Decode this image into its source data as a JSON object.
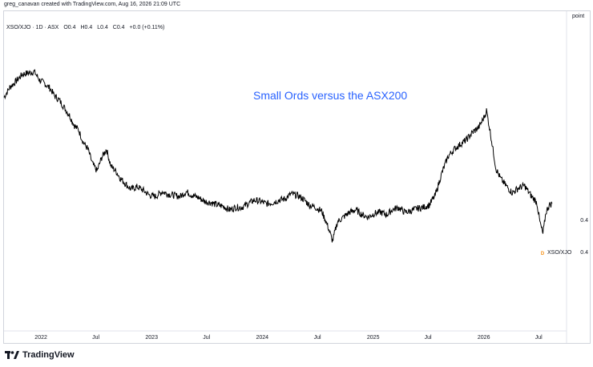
{
  "header": {
    "credit": "greg_canavan created with TradingView.com, Aug 16, 2026 21:09 UTC"
  },
  "legend": {
    "symbol": "XSO/XJO · 1D · ASX",
    "open": "O0.4",
    "high": "H0.4",
    "low": "L0.4",
    "close": "C0.4",
    "change": "+0.0 (+0.11%)"
  },
  "price_axis": {
    "unit": "point",
    "upper_label": "0.4",
    "last_label": "0.4"
  },
  "series_tag": "XSO/XJO",
  "marker": "D",
  "footer": {
    "brand": "TradingView"
  },
  "colors": {
    "line": "#000000",
    "title": "#2962ff",
    "marker": "#f7931a",
    "grid": "#d1d4dc"
  },
  "chart_data": {
    "type": "line",
    "title": "Small Ords versus the ASX200",
    "x_tick_labels": [
      "2022",
      "Jul",
      "2023",
      "Jul",
      "2024",
      "Jul",
      "2025",
      "Jul",
      "2026",
      "Jul"
    ],
    "x_ticks": [
      "2022-01-01",
      "2022-07-01",
      "2023-01-01",
      "2023-07-01",
      "2024-01-01",
      "2024-07-01",
      "2025-01-01",
      "2025-07-01",
      "2026-01-01",
      "2026-07-01"
    ],
    "y_tick_labels": [
      "0.4",
      "0.4"
    ],
    "ylim": [
      0.336,
      0.468
    ],
    "grid": false,
    "series": [
      {
        "name": "XSO/XJO",
        "x": [
          "2021-09-01",
          "2021-09-20",
          "2021-10-10",
          "2021-11-01",
          "2021-11-20",
          "2021-12-10",
          "2021-12-28",
          "2022-01-15",
          "2022-02-01",
          "2022-02-15",
          "2022-03-01",
          "2022-03-20",
          "2022-04-05",
          "2022-04-20",
          "2022-05-05",
          "2022-05-20",
          "2022-06-05",
          "2022-06-20",
          "2022-07-05",
          "2022-07-20",
          "2022-08-05",
          "2022-08-20",
          "2022-09-05",
          "2022-09-20",
          "2022-10-05",
          "2022-10-25",
          "2022-11-15",
          "2022-12-05",
          "2022-12-25",
          "2023-01-15",
          "2023-02-05",
          "2023-02-25",
          "2023-03-15",
          "2023-04-05",
          "2023-04-25",
          "2023-05-15",
          "2023-06-05",
          "2023-06-25",
          "2023-07-15",
          "2023-08-05",
          "2023-08-25",
          "2023-09-15",
          "2023-10-05",
          "2023-10-25",
          "2023-11-15",
          "2023-12-05",
          "2023-12-25",
          "2024-01-15",
          "2024-02-05",
          "2024-02-25",
          "2024-03-15",
          "2024-04-05",
          "2024-04-25",
          "2024-05-15",
          "2024-06-05",
          "2024-06-25",
          "2024-07-15",
          "2024-08-05",
          "2024-08-20",
          "2024-09-05",
          "2024-09-25",
          "2024-10-15",
          "2024-11-05",
          "2024-11-25",
          "2024-12-15",
          "2025-01-05",
          "2025-01-25",
          "2025-02-15",
          "2025-03-05",
          "2025-03-25",
          "2025-04-15",
          "2025-05-05",
          "2025-05-25",
          "2025-06-15",
          "2025-07-05",
          "2025-07-25",
          "2025-08-15",
          "2025-09-05",
          "2025-09-25",
          "2025-10-15",
          "2025-11-05",
          "2025-11-25",
          "2025-12-15",
          "2026-01-01",
          "2026-01-10",
          "2026-01-25",
          "2026-02-10",
          "2026-02-25",
          "2026-03-15",
          "2026-04-05",
          "2026-04-25",
          "2026-05-15",
          "2026-06-05",
          "2026-06-25",
          "2026-07-05",
          "2026-07-15",
          "2026-07-25",
          "2026-08-05",
          "2026-08-14"
        ],
        "values": [
          0.4325,
          0.4365,
          0.439,
          0.442,
          0.4425,
          0.443,
          0.4395,
          0.438,
          0.436,
          0.433,
          0.4315,
          0.428,
          0.425,
          0.421,
          0.419,
          0.414,
          0.411,
          0.405,
          0.402,
          0.4075,
          0.411,
          0.404,
          0.402,
          0.399,
          0.397,
          0.3945,
          0.3955,
          0.394,
          0.392,
          0.3915,
          0.3935,
          0.3925,
          0.392,
          0.3915,
          0.3935,
          0.392,
          0.391,
          0.3895,
          0.389,
          0.388,
          0.3875,
          0.386,
          0.387,
          0.387,
          0.3885,
          0.39,
          0.3895,
          0.3885,
          0.389,
          0.39,
          0.3905,
          0.3925,
          0.392,
          0.3905,
          0.388,
          0.387,
          0.3855,
          0.379,
          0.373,
          0.381,
          0.383,
          0.385,
          0.386,
          0.384,
          0.383,
          0.3845,
          0.385,
          0.384,
          0.386,
          0.387,
          0.385,
          0.3855,
          0.3865,
          0.387,
          0.388,
          0.392,
          0.401,
          0.408,
          0.411,
          0.413,
          0.415,
          0.418,
          0.42,
          0.424,
          0.427,
          0.416,
          0.403,
          0.399,
          0.396,
          0.393,
          0.395,
          0.396,
          0.392,
          0.389,
          0.381,
          0.376,
          0.385,
          0.388,
          0.3885
        ]
      }
    ]
  }
}
